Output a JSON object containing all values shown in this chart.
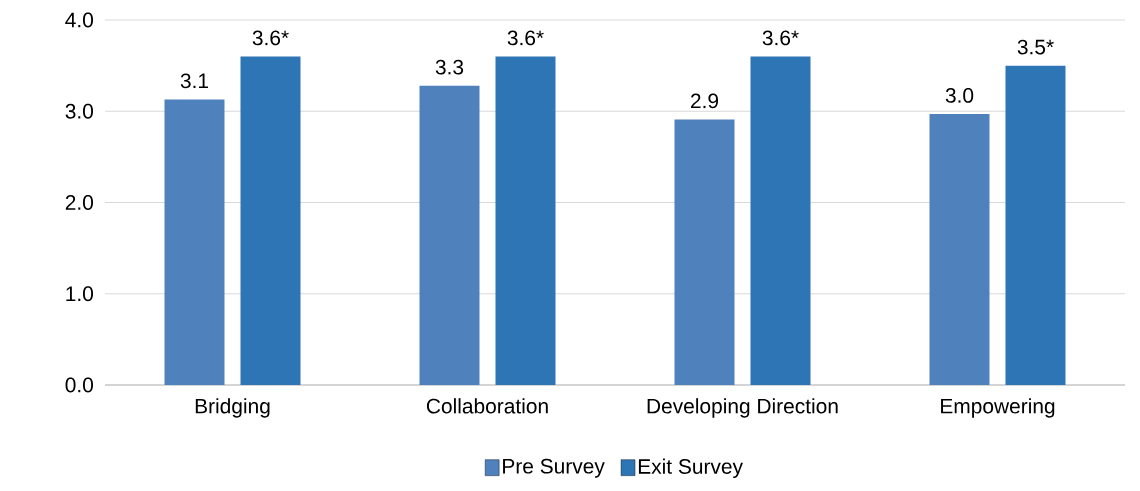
{
  "chart_data": {
    "type": "bar",
    "categories": [
      "Bridging",
      "Collaboration",
      "Developing Direction",
      "Empowering"
    ],
    "series": [
      {
        "name": "Pre Survey",
        "color": "#4f81bd",
        "values": [
          3.13,
          3.28,
          2.91,
          2.97
        ],
        "value_labels": [
          "3.1",
          "3.3",
          "2.9",
          "3.0"
        ]
      },
      {
        "name": "Exit Survey",
        "color": "#2e75b6",
        "values": [
          3.6,
          3.6,
          3.6,
          3.5
        ],
        "value_labels": [
          "3.6*",
          "3.6*",
          "3.6*",
          "3.5*"
        ]
      }
    ],
    "ylim": [
      0,
      4
    ],
    "yticks": [
      {
        "value": 0,
        "label": "0.0"
      },
      {
        "value": 1,
        "label": "1.0"
      },
      {
        "value": 2,
        "label": "2.0"
      },
      {
        "value": 3,
        "label": "3.0"
      },
      {
        "value": 4,
        "label": "4.0"
      }
    ],
    "grid": "y",
    "legend": "bottom"
  }
}
